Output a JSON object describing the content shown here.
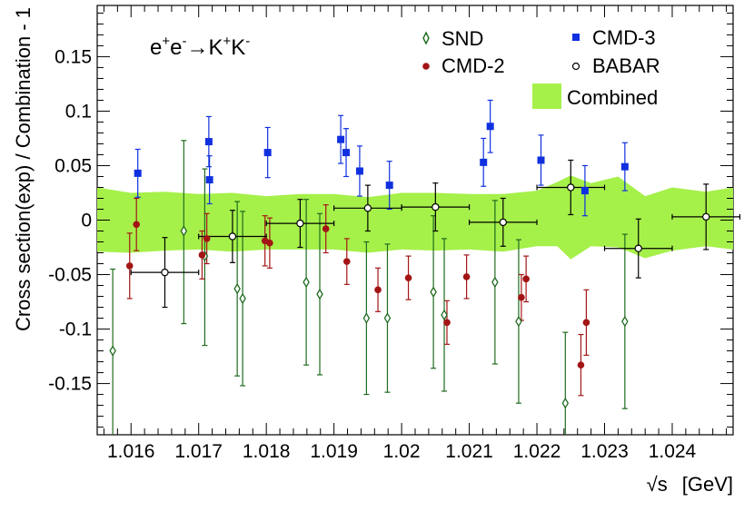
{
  "chart_data": {
    "type": "scatter",
    "title": {
      "base": "e",
      "sup1": "+",
      "mid1": "e",
      "sup2": "-",
      "arrow": "→",
      "mid2": "K",
      "sup3": "+",
      "mid3": "K",
      "sup4": "-"
    },
    "xlabel": {
      "root": "√s",
      "unit": "[GeV]"
    },
    "ylabel": "Cross section(exp) / Combination - 1",
    "xlim": [
      1.0155,
      1.0249
    ],
    "ylim": [
      -0.197,
      0.197
    ],
    "x_ticks": [
      1.016,
      1.017,
      1.018,
      1.019,
      1.02,
      1.021,
      1.022,
      1.023,
      1.024
    ],
    "x_tick_labels": [
      "1.016",
      "1.017",
      "1.018",
      "1.019",
      "1.02",
      "1.021",
      "1.022",
      "1.023",
      "1.024"
    ],
    "y_ticks": [
      -0.15,
      -0.1,
      -0.05,
      0,
      0.05,
      0.1,
      0.15
    ],
    "y_tick_labels": [
      "-0.15",
      "-0.1",
      "-0.05",
      "0",
      "0.05",
      "0.1",
      "0.15"
    ],
    "colors": {
      "snd": "#1f6b1f",
      "cmd2": "#a31515",
      "cmd3": "#1030e0",
      "babar": "#000000",
      "band": "#a6f04a"
    },
    "legend": {
      "snd": "SND",
      "cmd2": "CMD-2",
      "cmd3": "CMD-3",
      "babar": "BABAR",
      "combined": "Combined"
    },
    "combined_band": {
      "x": [
        1.0155,
        1.016,
        1.0165,
        1.017,
        1.0175,
        1.018,
        1.0185,
        1.019,
        1.0195,
        1.02,
        1.0205,
        1.021,
        1.0215,
        1.022,
        1.0223,
        1.0225,
        1.0228,
        1.0232,
        1.0236,
        1.024,
        1.0245,
        1.0249
      ],
      "upper": [
        0.03,
        0.025,
        0.026,
        0.024,
        0.025,
        0.022,
        0.024,
        0.024,
        0.021,
        0.025,
        0.025,
        0.024,
        0.024,
        0.027,
        0.035,
        0.041,
        0.034,
        0.04,
        0.022,
        0.03,
        0.026,
        0.03
      ],
      "lower": [
        -0.029,
        -0.03,
        -0.028,
        -0.027,
        -0.029,
        -0.027,
        -0.027,
        -0.027,
        -0.03,
        -0.027,
        -0.028,
        -0.027,
        -0.029,
        -0.024,
        -0.024,
        -0.036,
        -0.024,
        -0.025,
        -0.035,
        -0.028,
        -0.024,
        -0.027
      ]
    },
    "series": [
      {
        "name": "SND",
        "marker": "open-diamond",
        "points": [
          {
            "x": 1.01573,
            "y": -0.12,
            "el": 0.08,
            "eh": 0.075
          },
          {
            "x": 1.01678,
            "y": -0.01,
            "el": 0.085,
            "eh": 0.083
          },
          {
            "x": 1.01709,
            "y": -0.033,
            "el": 0.082,
            "eh": 0.08
          },
          {
            "x": 1.01757,
            "y": -0.063,
            "el": 0.08,
            "eh": 0.08
          },
          {
            "x": 1.01765,
            "y": -0.072,
            "el": 0.08,
            "eh": 0.08
          },
          {
            "x": 1.01859,
            "y": -0.057,
            "el": 0.076,
            "eh": 0.076
          },
          {
            "x": 1.01879,
            "y": -0.068,
            "el": 0.074,
            "eh": 0.074
          },
          {
            "x": 1.01948,
            "y": -0.09,
            "el": 0.07,
            "eh": 0.07
          },
          {
            "x": 1.01979,
            "y": -0.09,
            "el": 0.068,
            "eh": 0.068
          },
          {
            "x": 1.02047,
            "y": -0.066,
            "el": 0.07,
            "eh": 0.07
          },
          {
            "x": 1.02063,
            "y": -0.087,
            "el": 0.07,
            "eh": 0.07
          },
          {
            "x": 1.02138,
            "y": -0.057,
            "el": 0.075,
            "eh": 0.075
          },
          {
            "x": 1.02173,
            "y": -0.093,
            "el": 0.075,
            "eh": 0.075
          },
          {
            "x": 1.02242,
            "y": -0.168,
            "el": 0.07,
            "eh": 0.065
          },
          {
            "x": 1.0233,
            "y": -0.093,
            "el": 0.08,
            "eh": 0.08
          }
        ]
      },
      {
        "name": "CMD-2",
        "marker": "filled-circle",
        "points": [
          {
            "x": 1.01598,
            "y": -0.042,
            "el": 0.03,
            "eh": 0.03
          },
          {
            "x": 1.01608,
            "y": -0.004,
            "el": 0.024,
            "eh": 0.024
          },
          {
            "x": 1.01705,
            "y": -0.032,
            "el": 0.022,
            "eh": 0.022
          },
          {
            "x": 1.01712,
            "y": -0.017,
            "el": 0.023,
            "eh": 0.023
          },
          {
            "x": 1.01798,
            "y": -0.019,
            "el": 0.023,
            "eh": 0.023
          },
          {
            "x": 1.01805,
            "y": -0.021,
            "el": 0.023,
            "eh": 0.023
          },
          {
            "x": 1.01888,
            "y": -0.008,
            "el": 0.022,
            "eh": 0.022
          },
          {
            "x": 1.01919,
            "y": -0.038,
            "el": 0.021,
            "eh": 0.021
          },
          {
            "x": 1.01965,
            "y": -0.064,
            "el": 0.02,
            "eh": 0.02
          },
          {
            "x": 1.0201,
            "y": -0.053,
            "el": 0.02,
            "eh": 0.02
          },
          {
            "x": 1.02067,
            "y": -0.094,
            "el": 0.02,
            "eh": 0.02
          },
          {
            "x": 1.02096,
            "y": -0.052,
            "el": 0.02,
            "eh": 0.02
          },
          {
            "x": 1.02177,
            "y": -0.071,
            "el": 0.021,
            "eh": 0.021
          },
          {
            "x": 1.02184,
            "y": -0.054,
            "el": 0.021,
            "eh": 0.021
          },
          {
            "x": 1.02265,
            "y": -0.133,
            "el": 0.028,
            "eh": 0.028
          },
          {
            "x": 1.02273,
            "y": -0.094,
            "el": 0.03,
            "eh": 0.03
          }
        ]
      },
      {
        "name": "CMD-3",
        "marker": "filled-square",
        "points": [
          {
            "x": 1.0161,
            "y": 0.043,
            "el": 0.022,
            "eh": 0.022
          },
          {
            "x": 1.01715,
            "y": 0.072,
            "el": 0.023,
            "eh": 0.023
          },
          {
            "x": 1.01716,
            "y": 0.037,
            "el": 0.022,
            "eh": 0.022
          },
          {
            "x": 1.01802,
            "y": 0.062,
            "el": 0.023,
            "eh": 0.023
          },
          {
            "x": 1.0191,
            "y": 0.074,
            "el": 0.022,
            "eh": 0.022
          },
          {
            "x": 1.01918,
            "y": 0.062,
            "el": 0.022,
            "eh": 0.022
          },
          {
            "x": 1.01938,
            "y": 0.045,
            "el": 0.023,
            "eh": 0.023
          },
          {
            "x": 1.01982,
            "y": 0.032,
            "el": 0.022,
            "eh": 0.022
          },
          {
            "x": 1.02121,
            "y": 0.053,
            "el": 0.022,
            "eh": 0.022
          },
          {
            "x": 1.02131,
            "y": 0.086,
            "el": 0.024,
            "eh": 0.024
          },
          {
            "x": 1.02206,
            "y": 0.055,
            "el": 0.023,
            "eh": 0.023
          },
          {
            "x": 1.02271,
            "y": 0.027,
            "el": 0.023,
            "eh": 0.023
          },
          {
            "x": 1.0233,
            "y": 0.049,
            "el": 0.022,
            "eh": 0.022
          }
        ]
      },
      {
        "name": "BABAR",
        "marker": "open-circle",
        "points": [
          {
            "x": 1.0165,
            "y": -0.048,
            "el": 0.032,
            "eh": 0.032,
            "xw": 0.0005
          },
          {
            "x": 1.0175,
            "y": -0.015,
            "el": 0.024,
            "eh": 0.024,
            "xw": 0.0005
          },
          {
            "x": 1.0185,
            "y": -0.003,
            "el": 0.022,
            "eh": 0.022,
            "xw": 0.0005
          },
          {
            "x": 1.0195,
            "y": 0.011,
            "el": 0.021,
            "eh": 0.021,
            "xw": 0.0005
          },
          {
            "x": 1.0205,
            "y": 0.012,
            "el": 0.022,
            "eh": 0.022,
            "xw": 0.0005
          },
          {
            "x": 1.0215,
            "y": -0.002,
            "el": 0.022,
            "eh": 0.022,
            "xw": 0.0005
          },
          {
            "x": 1.0225,
            "y": 0.03,
            "el": 0.025,
            "eh": 0.025,
            "xw": 0.0005
          },
          {
            "x": 1.0235,
            "y": -0.026,
            "el": 0.027,
            "eh": 0.027,
            "xw": 0.0005
          },
          {
            "x": 1.0245,
            "y": 0.003,
            "el": 0.03,
            "eh": 0.03,
            "xw": 0.0005
          }
        ]
      }
    ]
  }
}
